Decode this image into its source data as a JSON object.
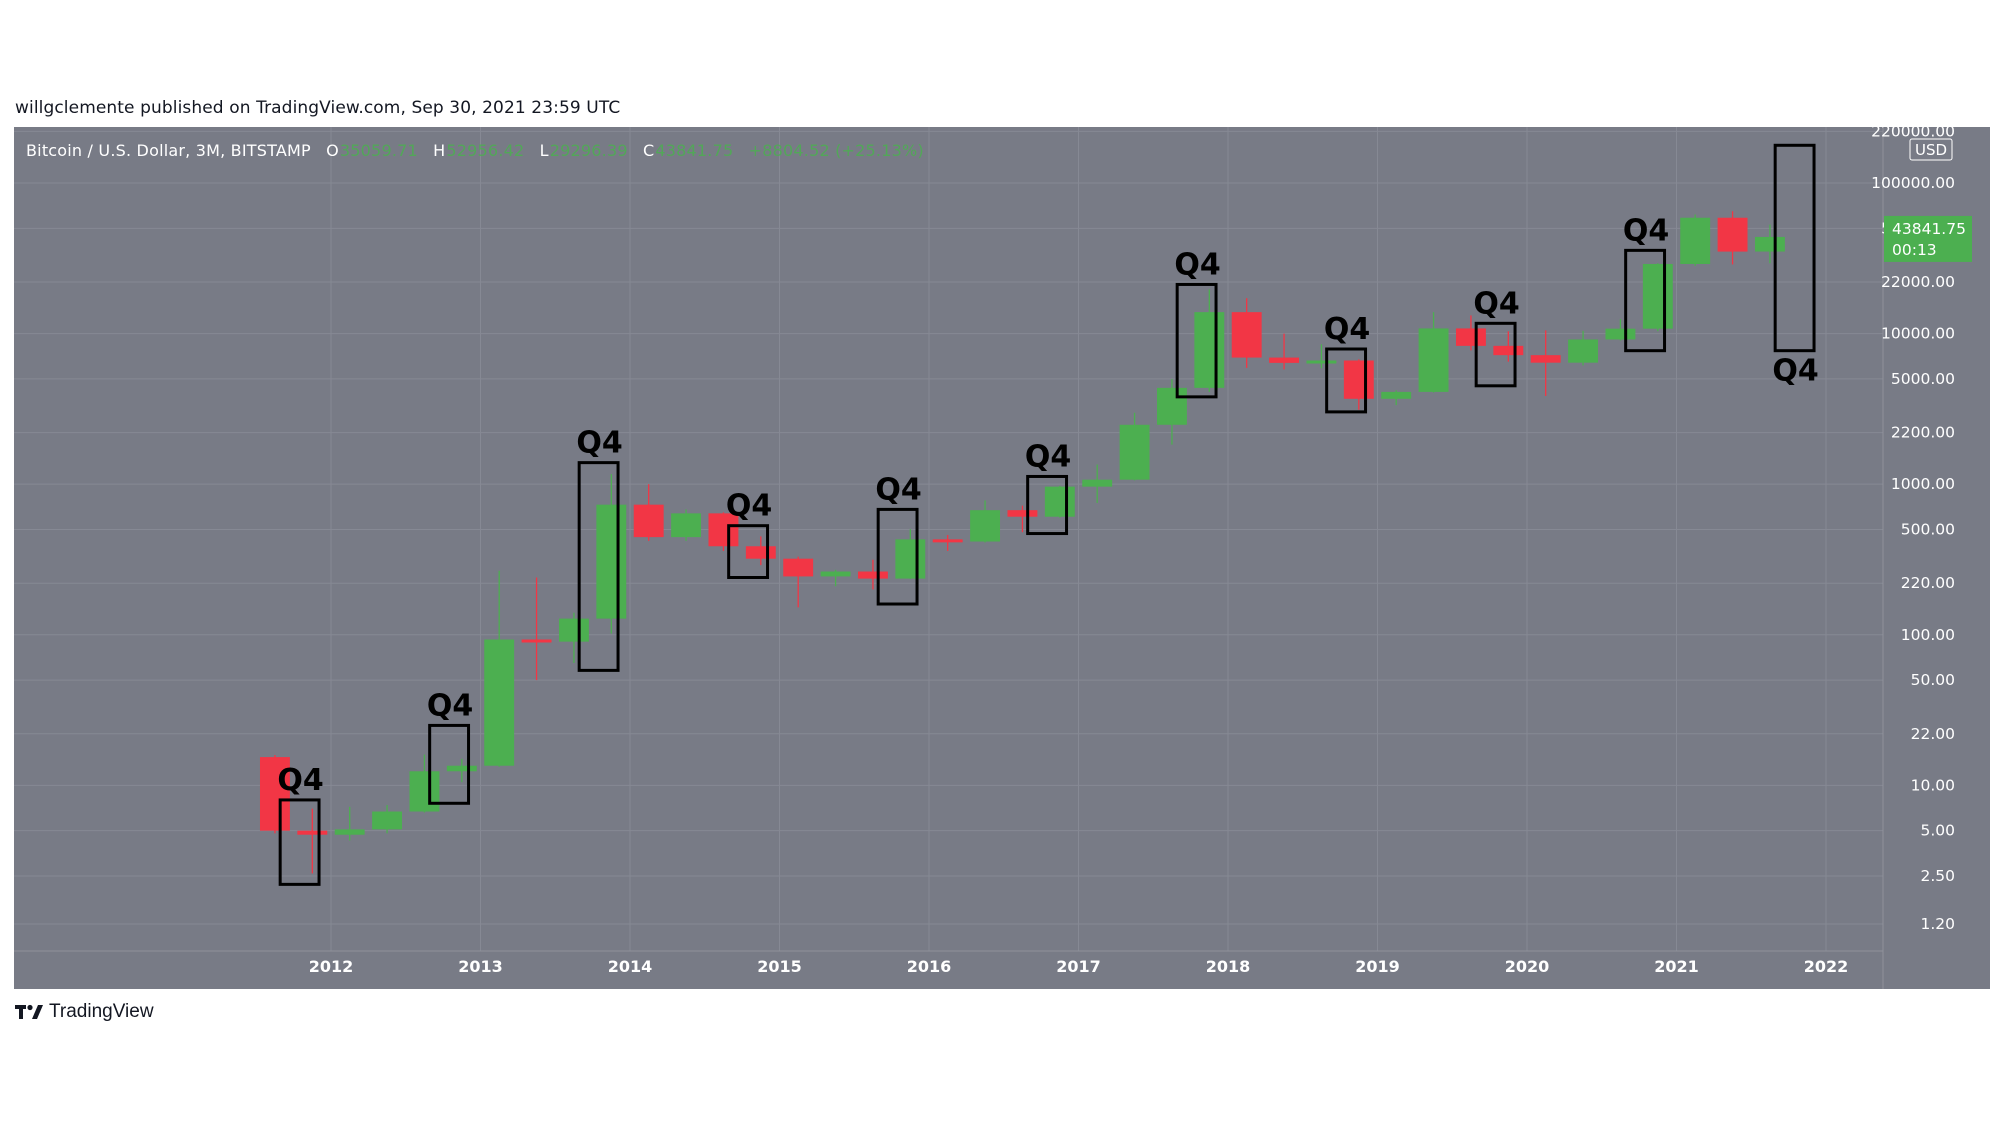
{
  "header": {
    "published_text": "willgclemente published on TradingView.com, Sep 30, 2021 23:59 UTC"
  },
  "legend": {
    "symbol": "Bitcoin / U.S. Dollar, 3M, BITSTAMP",
    "o_label": "O",
    "o_value": "35059.71",
    "h_label": "H",
    "h_value": "52956.42",
    "l_label": "L",
    "l_value": "29296.39",
    "c_label": "C",
    "c_value": "43841.75",
    "change": "+8804.52 (+25.13%)"
  },
  "footer": {
    "brand": "TradingView",
    "logo_icon": "tradingview-logo-icon"
  },
  "colors": {
    "background": "#787b86",
    "up": "#4caf50",
    "down": "#f23645",
    "box": "#000000",
    "grid": "#868994",
    "axis_text": "#ffffff",
    "price_tag": "#4caf50"
  },
  "chart_data": {
    "type": "candlestick",
    "interval": "3M",
    "symbol": "Bitcoin / U.S. Dollar",
    "exchange": "BITSTAMP",
    "currency": "USD",
    "scale": "log",
    "ylim": [
      0.85,
      220000
    ],
    "grid": true,
    "y_ticks": [
      "220000.00",
      "100000.00",
      "50000.00",
      "22000.00",
      "10000.00",
      "5000.00",
      "2200.00",
      "1000.00",
      "500.00",
      "220.00",
      "100.00",
      "50.00",
      "22.00",
      "10.00",
      "5.00",
      "2.50",
      "1.20"
    ],
    "y_ticks_values": [
      220000,
      100000,
      50000,
      22000,
      10000,
      5000,
      2200,
      1000,
      500,
      220,
      100,
      50,
      22,
      10,
      5,
      2.5,
      1.2
    ],
    "x_ticks": [
      "2012",
      "2013",
      "2014",
      "2015",
      "2016",
      "2017",
      "2018",
      "2019",
      "2020",
      "2021",
      "2022"
    ],
    "x_ticks_values": [
      2012,
      2013,
      2014,
      2015,
      2016,
      2017,
      2018,
      2019,
      2020,
      2021,
      2022
    ],
    "currency_label": "USD",
    "last_price": {
      "value": "43841.75",
      "countdown": "00:13",
      "y": 43841.75
    },
    "candles": [
      {
        "t": 2011.5,
        "o": 15.4,
        "h": 15.9,
        "l": 4.8,
        "c": 5.0
      },
      {
        "t": 2011.75,
        "o": 5.0,
        "h": 7.0,
        "l": 2.6,
        "c": 4.7
      },
      {
        "t": 2012.0,
        "o": 4.7,
        "h": 7.2,
        "l": 4.3,
        "c": 5.1
      },
      {
        "t": 2012.25,
        "o": 5.1,
        "h": 7.4,
        "l": 4.8,
        "c": 6.7
      },
      {
        "t": 2012.5,
        "o": 6.7,
        "h": 16.0,
        "l": 6.6,
        "c": 12.4
      },
      {
        "t": 2012.75,
        "o": 12.4,
        "h": 15.0,
        "l": 10.5,
        "c": 13.5
      },
      {
        "t": 2013.0,
        "o": 13.5,
        "h": 266.0,
        "l": 13.3,
        "c": 93.0
      },
      {
        "t": 2013.25,
        "o": 93.0,
        "h": 240.0,
        "l": 50.0,
        "c": 90.0
      },
      {
        "t": 2013.5,
        "o": 90.0,
        "h": 140.0,
        "l": 65.0,
        "c": 128.0
      },
      {
        "t": 2013.75,
        "o": 128.0,
        "h": 1165.0,
        "l": 102.0,
        "c": 731.0
      },
      {
        "t": 2014.0,
        "o": 731.0,
        "h": 1000.0,
        "l": 420.0,
        "c": 445.0
      },
      {
        "t": 2014.25,
        "o": 445.0,
        "h": 680.0,
        "l": 420.0,
        "c": 640.0
      },
      {
        "t": 2014.5,
        "o": 640.0,
        "h": 650.0,
        "l": 360.0,
        "c": 387.0
      },
      {
        "t": 2014.75,
        "o": 387.0,
        "h": 450.0,
        "l": 290.0,
        "c": 320.0
      },
      {
        "t": 2015.0,
        "o": 320.0,
        "h": 330.0,
        "l": 152.0,
        "c": 244.0
      },
      {
        "t": 2015.25,
        "o": 244.0,
        "h": 270.0,
        "l": 210.0,
        "c": 263.0
      },
      {
        "t": 2015.5,
        "o": 263.0,
        "h": 315.0,
        "l": 200.0,
        "c": 236.0
      },
      {
        "t": 2015.75,
        "o": 236.0,
        "h": 502.0,
        "l": 235.0,
        "c": 430.0
      },
      {
        "t": 2016.0,
        "o": 430.0,
        "h": 460.0,
        "l": 360.0,
        "c": 416.0
      },
      {
        "t": 2016.25,
        "o": 416.0,
        "h": 780.0,
        "l": 410.0,
        "c": 672.0
      },
      {
        "t": 2016.5,
        "o": 672.0,
        "h": 720.0,
        "l": 480.0,
        "c": 608.0
      },
      {
        "t": 2016.75,
        "o": 608.0,
        "h": 975.0,
        "l": 600.0,
        "c": 963.0
      },
      {
        "t": 2017.0,
        "o": 963.0,
        "h": 1350.0,
        "l": 750.0,
        "c": 1071.0
      },
      {
        "t": 2017.25,
        "o": 1071.0,
        "h": 2980.0,
        "l": 1060.0,
        "c": 2480.0
      },
      {
        "t": 2017.5,
        "o": 2480.0,
        "h": 4980.0,
        "l": 1830.0,
        "c": 4360.0
      },
      {
        "t": 2017.75,
        "o": 4360.0,
        "h": 19666.0,
        "l": 4100.0,
        "c": 13880.0
      },
      {
        "t": 2018.0,
        "o": 13880.0,
        "h": 17180.0,
        "l": 5920.0,
        "c": 6930.0
      },
      {
        "t": 2018.25,
        "o": 6930.0,
        "h": 9990.0,
        "l": 5780.0,
        "c": 6390.0
      },
      {
        "t": 2018.5,
        "o": 6390.0,
        "h": 8490.0,
        "l": 5880.0,
        "c": 6626.0
      },
      {
        "t": 2018.75,
        "o": 6626.0,
        "h": 6750.0,
        "l": 3120.0,
        "c": 3690.0
      },
      {
        "t": 2019.0,
        "o": 3690.0,
        "h": 4200.0,
        "l": 3350.0,
        "c": 4100.0
      },
      {
        "t": 2019.25,
        "o": 4100.0,
        "h": 13880.0,
        "l": 4060.0,
        "c": 10820.0
      },
      {
        "t": 2019.5,
        "o": 10820.0,
        "h": 13200.0,
        "l": 7730.0,
        "c": 8290.0
      },
      {
        "t": 2019.75,
        "o": 8290.0,
        "h": 10350.0,
        "l": 6510.0,
        "c": 7190.0
      },
      {
        "t": 2020.0,
        "o": 7190.0,
        "h": 10500.0,
        "l": 3850.0,
        "c": 6410.0
      },
      {
        "t": 2020.25,
        "o": 6410.0,
        "h": 10430.0,
        "l": 6150.0,
        "c": 9140.0
      },
      {
        "t": 2020.5,
        "o": 9140.0,
        "h": 12470.0,
        "l": 9000.0,
        "c": 10780.0
      },
      {
        "t": 2020.75,
        "o": 10780.0,
        "h": 29300.0,
        "l": 10370.0,
        "c": 28990.0
      },
      {
        "t": 2021.0,
        "o": 28990.0,
        "h": 61780.0,
        "l": 28130.0,
        "c": 58790.0
      },
      {
        "t": 2021.25,
        "o": 58790.0,
        "h": 64900.0,
        "l": 28800.0,
        "c": 35040.0
      },
      {
        "t": 2021.5,
        "o": 35059.71,
        "h": 52956.42,
        "l": 29296.39,
        "c": 43841.75
      }
    ],
    "annotations": [
      {
        "label": "Q4",
        "x0": 2011.66,
        "x1": 2011.92,
        "y_low": 2.2,
        "y_high": 8.0
      },
      {
        "label": "Q4",
        "x0": 2012.66,
        "x1": 2012.92,
        "y_low": 7.6,
        "y_high": 25.0
      },
      {
        "label": "Q4",
        "x0": 2013.66,
        "x1": 2013.92,
        "y_low": 58.0,
        "y_high": 1390.0
      },
      {
        "label": "Q4",
        "x0": 2014.66,
        "x1": 2014.92,
        "y_low": 240.0,
        "y_high": 530.0
      },
      {
        "label": "Q4",
        "x0": 2015.66,
        "x1": 2015.92,
        "y_low": 160.0,
        "y_high": 680.0
      },
      {
        "label": "Q4",
        "x0": 2016.66,
        "x1": 2016.92,
        "y_low": 470.0,
        "y_high": 1125.0
      },
      {
        "label": "Q4",
        "x0": 2017.66,
        "x1": 2017.92,
        "y_low": 3800.0,
        "y_high": 21200.0
      },
      {
        "label": "Q4",
        "x0": 2018.66,
        "x1": 2018.92,
        "y_low": 3020.0,
        "y_high": 7900.0
      },
      {
        "label": "Q4",
        "x0": 2019.66,
        "x1": 2019.92,
        "y_low": 4500.0,
        "y_high": 11700.0
      },
      {
        "label": "Q4",
        "x0": 2020.66,
        "x1": 2020.92,
        "y_low": 7700.0,
        "y_high": 35700.0
      },
      {
        "label": "Q4",
        "x0": 2021.66,
        "x1": 2021.92,
        "y_low": 7700.0,
        "y_high": 178000.0,
        "label_below": true
      }
    ]
  }
}
